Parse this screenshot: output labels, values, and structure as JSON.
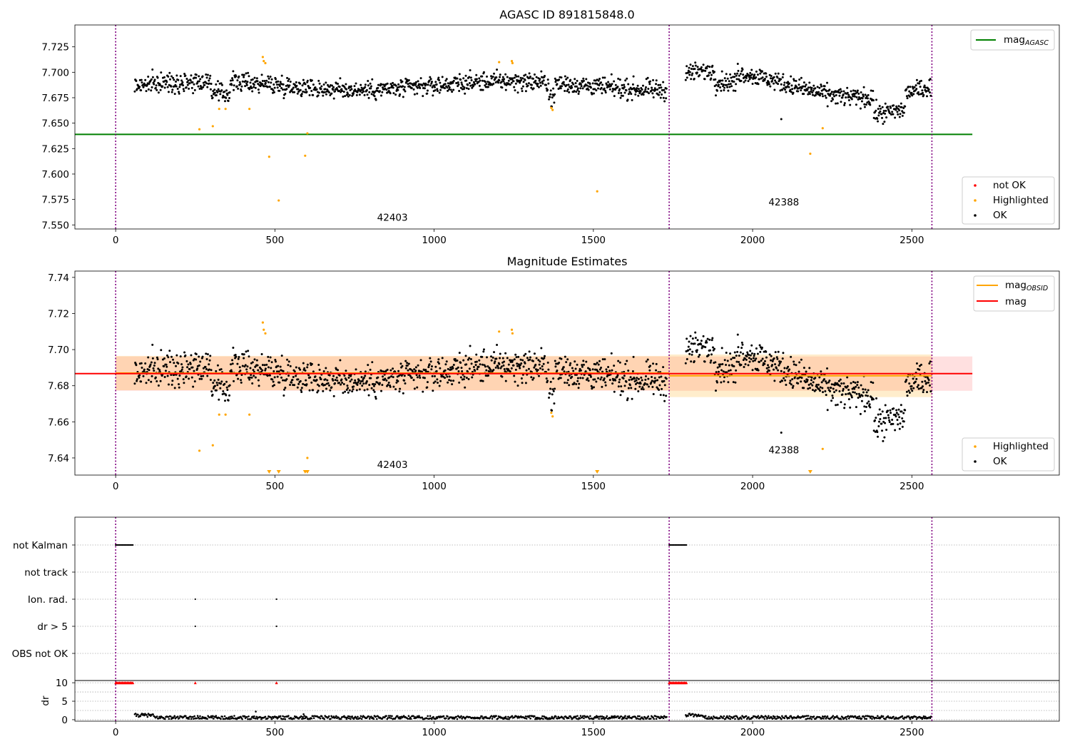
{
  "chart_data": [
    {
      "type": "scatter",
      "title": "AGASC ID 891815848.0",
      "xlim": [
        -128,
        2963
      ],
      "ylim": [
        7.546,
        7.7465
      ],
      "xticks": [
        0,
        500,
        1000,
        1500,
        2000,
        2500
      ],
      "yticks": [
        7.55,
        7.575,
        7.6,
        7.625,
        7.65,
        7.675,
        7.7,
        7.725
      ],
      "ytick_labels": [
        "7.550",
        "7.575",
        "7.600",
        "7.625",
        "7.650",
        "7.675",
        "7.700",
        "7.725"
      ],
      "obs_boundaries": [
        0,
        1738,
        2563
      ],
      "annotations": [
        {
          "text": "42403",
          "x": 869,
          "y": 7.554
        },
        {
          "text": "42388",
          "x": 2098,
          "y": 7.569
        }
      ],
      "reference_line": {
        "name": "mag_AGASC",
        "y": 7.639,
        "x_range": [
          0,
          2690
        ],
        "color": "#008000"
      },
      "segments": [
        {
          "x_start": 60,
          "x_end": 1730,
          "base": 7.687,
          "amplitude": 0.006,
          "noise": 0.005
        },
        {
          "x_start": 1790,
          "x_end": 2560,
          "base": 7.688,
          "amplitude": 0.013,
          "noise": 0.005
        }
      ],
      "highlighted_points": [
        {
          "x": 263,
          "y": 7.644
        },
        {
          "x": 305,
          "y": 7.647
        },
        {
          "x": 325,
          "y": 7.664
        },
        {
          "x": 345,
          "y": 7.664
        },
        {
          "x": 420,
          "y": 7.664
        },
        {
          "x": 462,
          "y": 7.715
        },
        {
          "x": 465,
          "y": 7.711
        },
        {
          "x": 470,
          "y": 7.709
        },
        {
          "x": 482,
          "y": 7.617
        },
        {
          "x": 512,
          "y": 7.574
        },
        {
          "x": 595,
          "y": 7.618
        },
        {
          "x": 602,
          "y": 7.64
        },
        {
          "x": 1204,
          "y": 7.71
        },
        {
          "x": 1244,
          "y": 7.711
        },
        {
          "x": 1246,
          "y": 7.709
        },
        {
          "x": 1368,
          "y": 7.665
        },
        {
          "x": 1372,
          "y": 7.663
        },
        {
          "x": 1512,
          "y": 7.583
        },
        {
          "x": 2181,
          "y": 7.62
        },
        {
          "x": 2220,
          "y": 7.645
        }
      ],
      "outlier_points": [
        {
          "x": 2090,
          "y": 7.654
        }
      ],
      "legend_lines": [
        {
          "label": "mag",
          "subscript": "AGASC",
          "color": "#008000"
        }
      ],
      "legend_points": [
        {
          "label": "not OK",
          "color": "#ff0000"
        },
        {
          "label": "Highlighted",
          "color": "#ffa500"
        },
        {
          "label": "OK",
          "color": "#000000"
        }
      ]
    },
    {
      "type": "scatter",
      "title": "Magnitude Estimates",
      "xlim": [
        -128,
        2963
      ],
      "ylim": [
        7.6305,
        7.7435
      ],
      "xticks": [
        0,
        500,
        1000,
        1500,
        2000,
        2500
      ],
      "yticks": [
        7.64,
        7.66,
        7.68,
        7.7,
        7.72,
        7.74
      ],
      "ytick_labels": [
        "7.64",
        "7.66",
        "7.68",
        "7.70",
        "7.72",
        "7.74"
      ],
      "obs_boundaries": [
        0,
        1738,
        2563
      ],
      "annotations": [
        {
          "text": "42403",
          "x": 869,
          "y": 7.6345
        },
        {
          "text": "42388",
          "x": 2098,
          "y": 7.6425
        }
      ],
      "mag_line": {
        "name": "mag",
        "y": 7.6867,
        "x_range": [
          0,
          2690
        ],
        "color": "#ff0000",
        "band": [
          7.6772,
          7.6962
        ]
      },
      "obsid_lines": [
        {
          "x_start": 0,
          "x_end": 1738,
          "y": 7.687,
          "band": [
            7.6775,
            7.6965
          ]
        },
        {
          "x_start": 1738,
          "x_end": 2563,
          "y": 7.6855,
          "band": [
            7.6737,
            7.6973
          ]
        }
      ],
      "segments": [
        {
          "x_start": 60,
          "x_end": 1730,
          "base": 7.687,
          "amplitude": 0.006,
          "noise": 0.005
        },
        {
          "x_start": 1790,
          "x_end": 2560,
          "base": 7.688,
          "amplitude": 0.013,
          "noise": 0.005
        }
      ],
      "highlighted_points": [
        {
          "x": 263,
          "y": 7.644
        },
        {
          "x": 305,
          "y": 7.647
        },
        {
          "x": 325,
          "y": 7.664
        },
        {
          "x": 345,
          "y": 7.664
        },
        {
          "x": 420,
          "y": 7.664
        },
        {
          "x": 462,
          "y": 7.715
        },
        {
          "x": 465,
          "y": 7.711
        },
        {
          "x": 470,
          "y": 7.709
        },
        {
          "x": 602,
          "y": 7.64
        },
        {
          "x": 1204,
          "y": 7.71
        },
        {
          "x": 1244,
          "y": 7.711
        },
        {
          "x": 1246,
          "y": 7.709
        },
        {
          "x": 1368,
          "y": 7.665
        },
        {
          "x": 1372,
          "y": 7.663
        },
        {
          "x": 2220,
          "y": 7.645
        }
      ],
      "clipped_markers_x": [
        482,
        512,
        595,
        602,
        1512,
        2181
      ],
      "outlier_points": [
        {
          "x": 2090,
          "y": 7.654
        }
      ],
      "legend_lines": [
        {
          "label": "mag",
          "subscript": "OBSID",
          "color": "#ffa500"
        },
        {
          "label": "mag",
          "subscript": "",
          "color": "#ff0000"
        }
      ],
      "legend_points": [
        {
          "label": "Highlighted",
          "color": "#ffa500"
        },
        {
          "label": "OK",
          "color": "#000000"
        }
      ]
    },
    {
      "type": "scatter",
      "title": "",
      "xlim": [
        -128,
        2963
      ],
      "xticks": [
        0,
        500,
        1000,
        1500,
        2000,
        2500
      ],
      "obs_boundaries": [
        0,
        1738,
        2563
      ],
      "flag_rows": [
        {
          "label": "not Kalman",
          "ranges": [
            [
              0,
              55
            ],
            [
              1738,
              1793
            ]
          ],
          "points": []
        },
        {
          "label": "not track",
          "ranges": [],
          "points": []
        },
        {
          "label": "Ion. rad.",
          "ranges": [],
          "points": [
            250,
            505
          ]
        },
        {
          "label": "dr > 5",
          "ranges": [],
          "points": [
            250,
            505
          ]
        },
        {
          "label": "OBS not OK",
          "ranges": [],
          "points": []
        }
      ],
      "dr": {
        "ylabel": "dr",
        "ylim": [
          -0.4,
          10.6
        ],
        "yticks": [
          0,
          5,
          10
        ],
        "flag_ranges": [
          [
            0,
            55
          ],
          [
            1738,
            1793
          ]
        ],
        "flag_points": [
          250,
          505
        ],
        "flag_value": 10,
        "segments": [
          [
            60,
            1730
          ],
          [
            1790,
            2560
          ]
        ],
        "typical": 0.6,
        "outliers": [
          {
            "x": 440,
            "y": 2.2
          },
          {
            "x": 590,
            "y": 1.5
          }
        ]
      }
    }
  ]
}
